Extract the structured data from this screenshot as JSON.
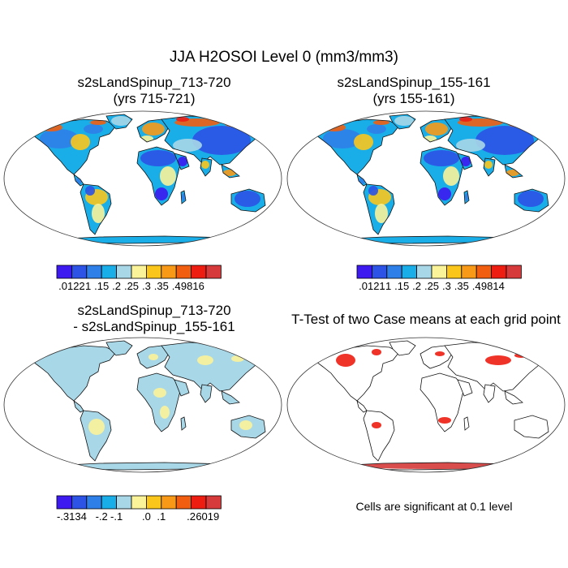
{
  "title": "JJA H2OSOI Level 0 (mm3/mm3)",
  "panels": [
    {
      "line1": "s2sLandSpinup_713-720",
      "line2": "(yrs 715-721)",
      "map_palette": "wet-dry",
      "colorbar": {
        "colors": [
          "#3c1af0",
          "#2c52e6",
          "#2f7fe8",
          "#1aaee8",
          "#a8d7e8",
          "#fbf39a",
          "#fbc61c",
          "#f89a17",
          "#f15e10",
          "#ee1d12",
          "#d63a3a"
        ],
        "labels": [
          ".0122",
          ".1",
          ".15",
          ".2",
          ".25",
          ".3",
          ".35",
          ".4",
          ".9816"
        ]
      }
    },
    {
      "line1": "s2sLandSpinup_155-161",
      "line2": "(yrs 155-161)",
      "map_palette": "wet-dry",
      "colorbar": {
        "colors": [
          "#3c1af0",
          "#2c52e6",
          "#2f7fe8",
          "#1aaee8",
          "#a8d7e8",
          "#fbf39a",
          "#fbc61c",
          "#f89a17",
          "#f15e10",
          "#ee1d12",
          "#d63a3a"
        ],
        "labels": [
          ".0121",
          ".1",
          ".15",
          ".2",
          ".25",
          ".3",
          ".35",
          ".4",
          ".9814"
        ]
      }
    },
    {
      "line1": "s2sLandSpinup_713-720",
      "line2": "- s2sLandSpinup_155-161",
      "map_palette": "difference",
      "colorbar": {
        "colors": [
          "#3c1af0",
          "#2c52e6",
          "#2f7fe8",
          "#1aaee8",
          "#a8d7e8",
          "#fbf39a",
          "#fbc61c",
          "#f89a17",
          "#f15e10",
          "#ee1d12",
          "#d63a3a"
        ],
        "labels": [
          "-.3134",
          "-.2",
          "-.1",
          ".0",
          ".1",
          ".2",
          ".6019"
        ]
      }
    },
    {
      "line1": "T-Test of two Case means at each grid point",
      "line2": "",
      "map_palette": "significance",
      "note": "Cells are significant at 0.1 level"
    }
  ]
}
